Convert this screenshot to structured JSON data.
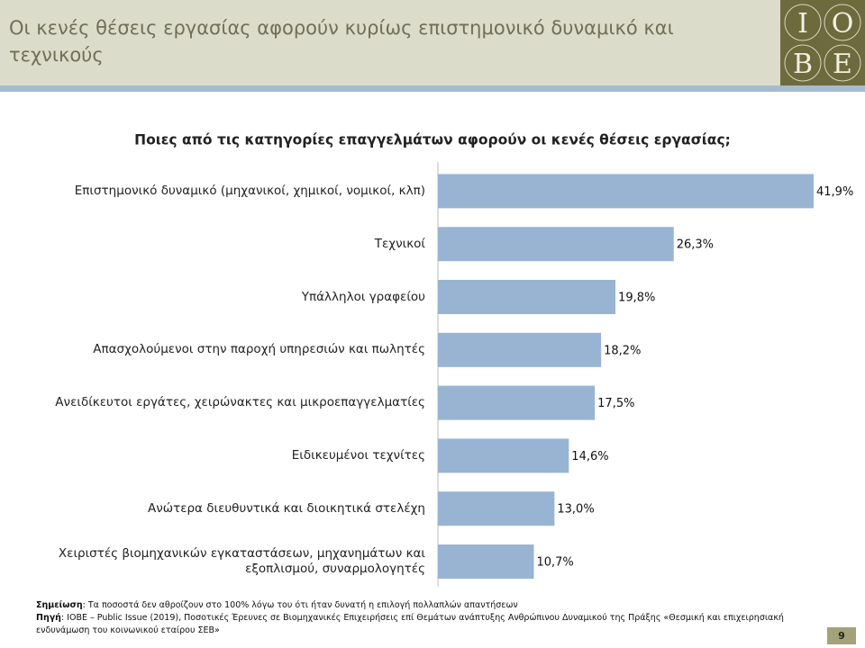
{
  "header": {
    "title": "Οι κενές θέσεις εργασίας αφορούν κυρίως επιστημονικό δυναμικό και τεχνικούς",
    "logo": [
      "I",
      "O",
      "B",
      "E"
    ]
  },
  "chart_data": {
    "type": "bar",
    "orientation": "horizontal",
    "title": "Ποιες από τις κατηγορίες επαγγελμάτων αφορούν οι κενές θέσεις εργασίας;",
    "categories": [
      "Επιστημονικό δυναμικό (μηχανικοί, χημικοί, νομικοί, κλπ)",
      "Τεχνικοί",
      "Υπάλληλοι γραφείου",
      "Απασχολούμενοι στην παροχή υπηρεσιών και πωλητές",
      "Ανειδίκευτοι εργάτες, χειρώνακτες και μικροεπαγγελματίες",
      "Ειδικευμένοι τεχνίτες",
      "Ανώτερα διευθυντικά και διοικητικά στελέχη",
      "Χειριστές βιομηχανικών εγκαταστάσεων, μηχανημάτων και εξοπλισμού, συναρμολογητές"
    ],
    "values": [
      41.9,
      26.3,
      19.8,
      18.2,
      17.5,
      14.6,
      13.0,
      10.7
    ],
    "value_labels": [
      "41,9%",
      "26,3%",
      "19,8%",
      "18,2%",
      "17,5%",
      "14,6%",
      "13,0%",
      "10,7%"
    ],
    "color": "#98b4d2"
  },
  "notes": [
    {
      "label": "Σημείωση",
      "text": ": Τα ποσοστά δεν αθροίζουν στο 100% λόγω του ότι ήταν δυνατή η επιλογή πολλαπλών απαντήσεων"
    },
    {
      "label": "Πηγή",
      "text": ": IOBE – Public Issue (2019), Ποσοτικές Έρευνες σε Βιομηχανικές Επιχειρήσεις επί Θεμάτων ανάπτυξης Ανθρώπινου Δυναμικού της Πράξης «Θεσμική και επιχειρησιακή ενδυνάμωση του κοινωνικού εταίρου ΣΕΒ»"
    }
  ],
  "page_number": "9"
}
